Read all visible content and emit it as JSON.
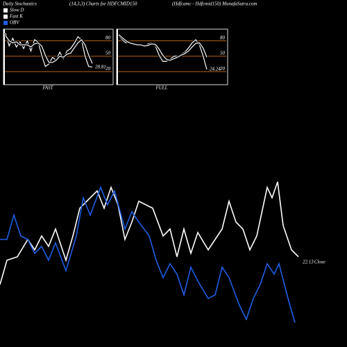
{
  "header": {
    "left": "Daily Stochastics",
    "middle": "(14,3,3) Charts for HDFCMID150",
    "right": "(Hdfcamc - Hdfcmid150) MunafaSutra.com"
  },
  "legend": [
    {
      "name": "Slow D",
      "color": "#ffffff"
    },
    {
      "name": "Fast K",
      "color": "#ffffff"
    },
    {
      "name": "OBV",
      "color": "#1e5ee6"
    }
  ],
  "chart_data": [
    {
      "type": "line",
      "title": "FAST",
      "ylim": [
        0,
        100
      ],
      "yticks": [
        20,
        50,
        80
      ],
      "end_label": 28.81,
      "series": [
        {
          "color": "#ffffff",
          "values": [
            95,
            70,
            85,
            68,
            78,
            65,
            80,
            60,
            82,
            78,
            52,
            30,
            35,
            48,
            42,
            58,
            45,
            60,
            65,
            75,
            88,
            82,
            50,
            30,
            28.81
          ]
        },
        {
          "color": "#ffffff",
          "values": [
            90,
            80,
            76,
            78,
            72,
            72,
            72,
            68,
            74,
            76,
            70,
            52,
            38,
            38,
            42,
            50,
            48,
            54,
            56,
            66,
            76,
            82,
            72,
            52,
            36
          ]
        }
      ]
    },
    {
      "type": "line",
      "title": "FULL",
      "ylim": [
        0,
        100
      ],
      "yticks": [
        20,
        50,
        80
      ],
      "end_label": 24.24,
      "series": [
        {
          "color": "#ffffff",
          "values": [
            90,
            82,
            76,
            78,
            72,
            72,
            72,
            68,
            74,
            76,
            70,
            52,
            40,
            40,
            44,
            50,
            50,
            54,
            58,
            66,
            76,
            82,
            72,
            50,
            24.24
          ]
        },
        {
          "color": "#ffffff",
          "values": [
            92,
            86,
            80,
            76,
            74,
            72,
            72,
            70,
            71,
            74,
            73,
            64,
            52,
            44,
            42,
            45,
            48,
            52,
            55,
            60,
            68,
            75,
            76,
            66,
            48
          ]
        }
      ]
    },
    {
      "type": "line",
      "xlim": [
        0,
        500
      ],
      "ylim": [
        0,
        500
      ],
      "end_label": 22.13,
      "end_name": "Close",
      "series": [
        {
          "color": "#ffffff",
          "x": [
            0,
            10,
            25,
            40,
            50,
            60,
            70,
            80,
            95,
            105,
            115,
            125,
            140,
            150,
            160,
            170,
            180,
            190,
            200,
            210,
            220,
            235,
            245,
            255,
            265,
            275,
            285,
            300,
            310,
            320,
            330,
            340,
            350,
            360,
            370,
            385,
            392,
            400,
            408,
            420,
            430
          ],
          "values": [
            90,
            125,
            130,
            155,
            140,
            160,
            145,
            170,
            125,
            160,
            200,
            210,
            225,
            200,
            230,
            205,
            155,
            180,
            210,
            205,
            200,
            160,
            170,
            130,
            170,
            135,
            165,
            140,
            155,
            170,
            210,
            180,
            170,
            140,
            160,
            230,
            215,
            238,
            175,
            140,
            130
          ]
        },
        {
          "color": "#1e5ee6",
          "x": [
            0,
            10,
            20,
            30,
            40,
            50,
            60,
            70,
            80,
            95,
            110,
            120,
            130,
            145,
            155,
            165,
            180,
            190,
            200,
            215,
            225,
            235,
            245,
            255,
            265,
            275,
            285,
            300,
            310,
            320,
            330,
            345,
            355,
            365,
            375,
            385,
            395,
            402,
            415,
            425
          ],
          "values": [
            155,
            155,
            190,
            160,
            155,
            135,
            145,
            125,
            150,
            110,
            160,
            215,
            190,
            230,
            205,
            225,
            170,
            195,
            180,
            160,
            125,
            100,
            120,
            105,
            75,
            115,
            95,
            70,
            75,
            115,
            100,
            60,
            40,
            70,
            90,
            120,
            105,
            120,
            70,
            35
          ]
        }
      ]
    }
  ]
}
